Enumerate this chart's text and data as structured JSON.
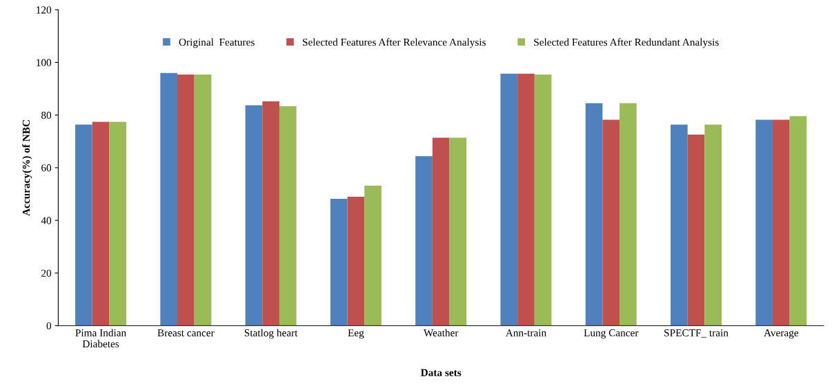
{
  "chart_data": {
    "type": "bar",
    "xlabel": "Data sets",
    "ylabel": "Accuracy(%) of NBC",
    "categories": [
      "Pima Indian\nDiabetes",
      "Breast cancer",
      "Statlog heart",
      "Eeg",
      "Weather",
      "Ann-train",
      "Lung Cancer",
      "SPECTF_ train",
      "Average"
    ],
    "series": [
      {
        "name": "Original  Features",
        "color": "#4f81bd",
        "values": [
          76.4,
          96.0,
          83.7,
          48.2,
          64.4,
          95.7,
          84.5,
          76.4,
          78.2
        ]
      },
      {
        "name": "Selected Features After Relevance Analysis",
        "color": "#c0504d",
        "values": [
          77.4,
          95.4,
          85.2,
          49.0,
          71.4,
          95.7,
          78.2,
          72.6,
          78.2
        ]
      },
      {
        "name": "Selected Features After Redundant Analysis",
        "color": "#9bbb59",
        "values": [
          77.4,
          95.4,
          83.4,
          53.2,
          71.4,
          95.4,
          84.5,
          76.4,
          79.6
        ]
      }
    ],
    "ylim": [
      0,
      120
    ],
    "yticks": [
      0,
      20,
      40,
      60,
      80,
      100,
      120
    ],
    "grid": false,
    "legend": "top"
  }
}
